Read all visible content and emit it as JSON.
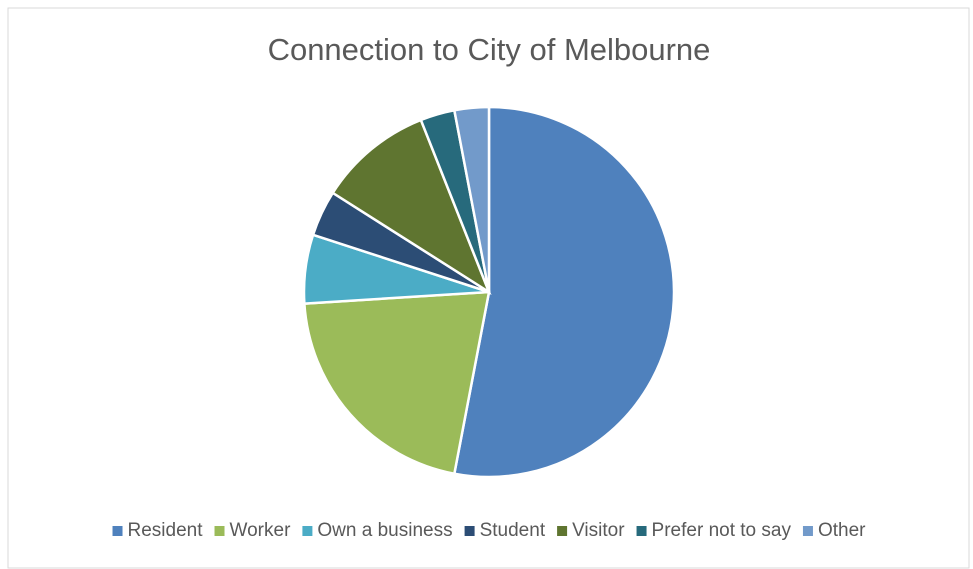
{
  "chart_data": {
    "type": "pie",
    "title": "Connection to City of Melbourne",
    "categories": [
      "Resident",
      "Worker",
      "Own a business",
      "Student",
      "Visitor",
      "Prefer not to say",
      "Other"
    ],
    "values": [
      53,
      21,
      6,
      4,
      10,
      3,
      3
    ],
    "colors": [
      "#4f81bd",
      "#9bbb59",
      "#4bacc6",
      "#2c4d75",
      "#5f7530",
      "#276a7c",
      "#729aca"
    ],
    "legend": "bottom"
  }
}
